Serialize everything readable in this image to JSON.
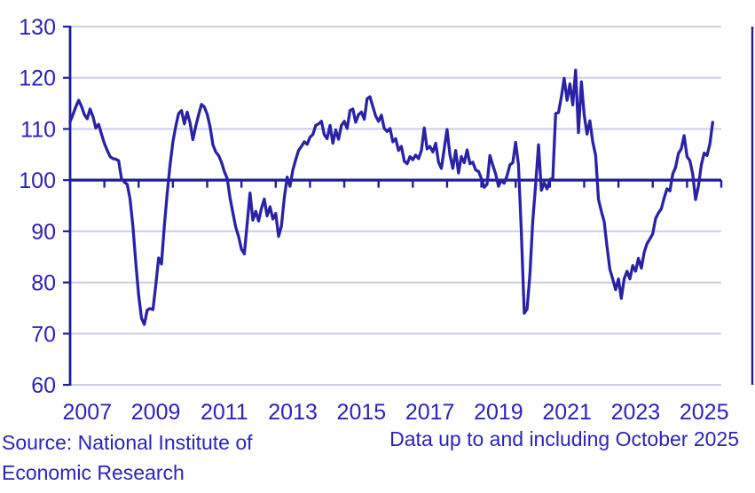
{
  "chart_data": {
    "type": "line",
    "title": "",
    "x_start": "2007-01",
    "x_end": "2025-10",
    "frequency": "monthly",
    "ylim": [
      60,
      130
    ],
    "baseline": 100,
    "grid": "horizontal",
    "legend_position": "none",
    "y_ticks": [
      130,
      120,
      110,
      100,
      90,
      80,
      70,
      60
    ],
    "x_tick_years": [
      "2007",
      "2009",
      "2011",
      "2013",
      "2015",
      "2017",
      "2019",
      "2021",
      "2023",
      "2025"
    ],
    "monthly_values": [
      111.4,
      112.8,
      114.3,
      115.6,
      114.4,
      112.8,
      112.0,
      113.9,
      112.4,
      110.2,
      110.9,
      109.0,
      107.2,
      105.8,
      104.6,
      104.2,
      104.1,
      103.8,
      100.3,
      99.6,
      99.2,
      96.3,
      91.0,
      84.0,
      77.5,
      73.0,
      71.8,
      74.6,
      74.9,
      74.7,
      79.5,
      84.8,
      83.6,
      91.0,
      97.5,
      103.0,
      107.5,
      110.5,
      113.0,
      113.6,
      111.0,
      113.3,
      111.2,
      107.9,
      110.5,
      112.8,
      114.8,
      114.3,
      112.9,
      110.5,
      106.9,
      105.5,
      104.8,
      103.5,
      101.7,
      100.3,
      96.5,
      93.6,
      90.8,
      89.0,
      86.5,
      85.6,
      91.5,
      97.5,
      92.2,
      93.9,
      92.0,
      94.5,
      96.3,
      93.0,
      94.8,
      92.4,
      93.5,
      89.0,
      91.0,
      96.5,
      100.6,
      98.8,
      102.0,
      104.0,
      105.8,
      106.6,
      107.5,
      107.0,
      108.4,
      108.9,
      110.7,
      111.0,
      111.5,
      108.9,
      108.1,
      110.7,
      107.2,
      109.8,
      108.0,
      110.7,
      111.5,
      110.1,
      113.6,
      113.9,
      111.3,
      112.8,
      113.3,
      111.9,
      115.9,
      116.3,
      114.4,
      112.5,
      111.5,
      112.7,
      110.1,
      109.5,
      110.1,
      107.5,
      108.1,
      105.8,
      106.6,
      103.7,
      103.2,
      104.6,
      104.0,
      104.9,
      104.2,
      105.8,
      110.2,
      106.1,
      106.6,
      105.5,
      107.2,
      103.5,
      102.3,
      106.1,
      109.9,
      104.9,
      102.3,
      105.8,
      101.4,
      104.6,
      103.4,
      105.9,
      103.2,
      103.5,
      102.0,
      101.7,
      100.3,
      98.6,
      99.2,
      104.8,
      102.9,
      101.2,
      98.8,
      100.0,
      99.4,
      100.9,
      103.0,
      103.4,
      107.4,
      103.0,
      90.0,
      74.0,
      74.8,
      81.6,
      92.0,
      99.0,
      106.9,
      98.0,
      99.5,
      98.3,
      100.1,
      100.4,
      113.0,
      113.2,
      116.2,
      119.9,
      115.6,
      118.8,
      114.7,
      121.5,
      109.3,
      119.2,
      112.7,
      109.0,
      111.6,
      107.5,
      104.8,
      96.2,
      93.9,
      91.9,
      87.0,
      82.6,
      80.6,
      78.6,
      80.7,
      76.9,
      80.7,
      82.2,
      80.7,
      83.3,
      82.2,
      84.7,
      82.8,
      85.9,
      87.6,
      88.5,
      89.5,
      92.5,
      93.6,
      94.4,
      96.5,
      98.3,
      97.9,
      101.2,
      102.5,
      105.2,
      106.1,
      108.7,
      104.6,
      103.8,
      101.2,
      96.2,
      98.8,
      103.0,
      105.3,
      104.8,
      107.0,
      111.3
    ]
  },
  "footer": {
    "source_line1": "Source: National Institute of",
    "source_line2": "Economic Research",
    "caption": "Data up to and including October 2025"
  },
  "colors": {
    "series": "#2921A6",
    "axis": "#1E1E96",
    "grid": "#CDCDEB",
    "text": "#2C23B8",
    "background": "#FFFFFF"
  }
}
